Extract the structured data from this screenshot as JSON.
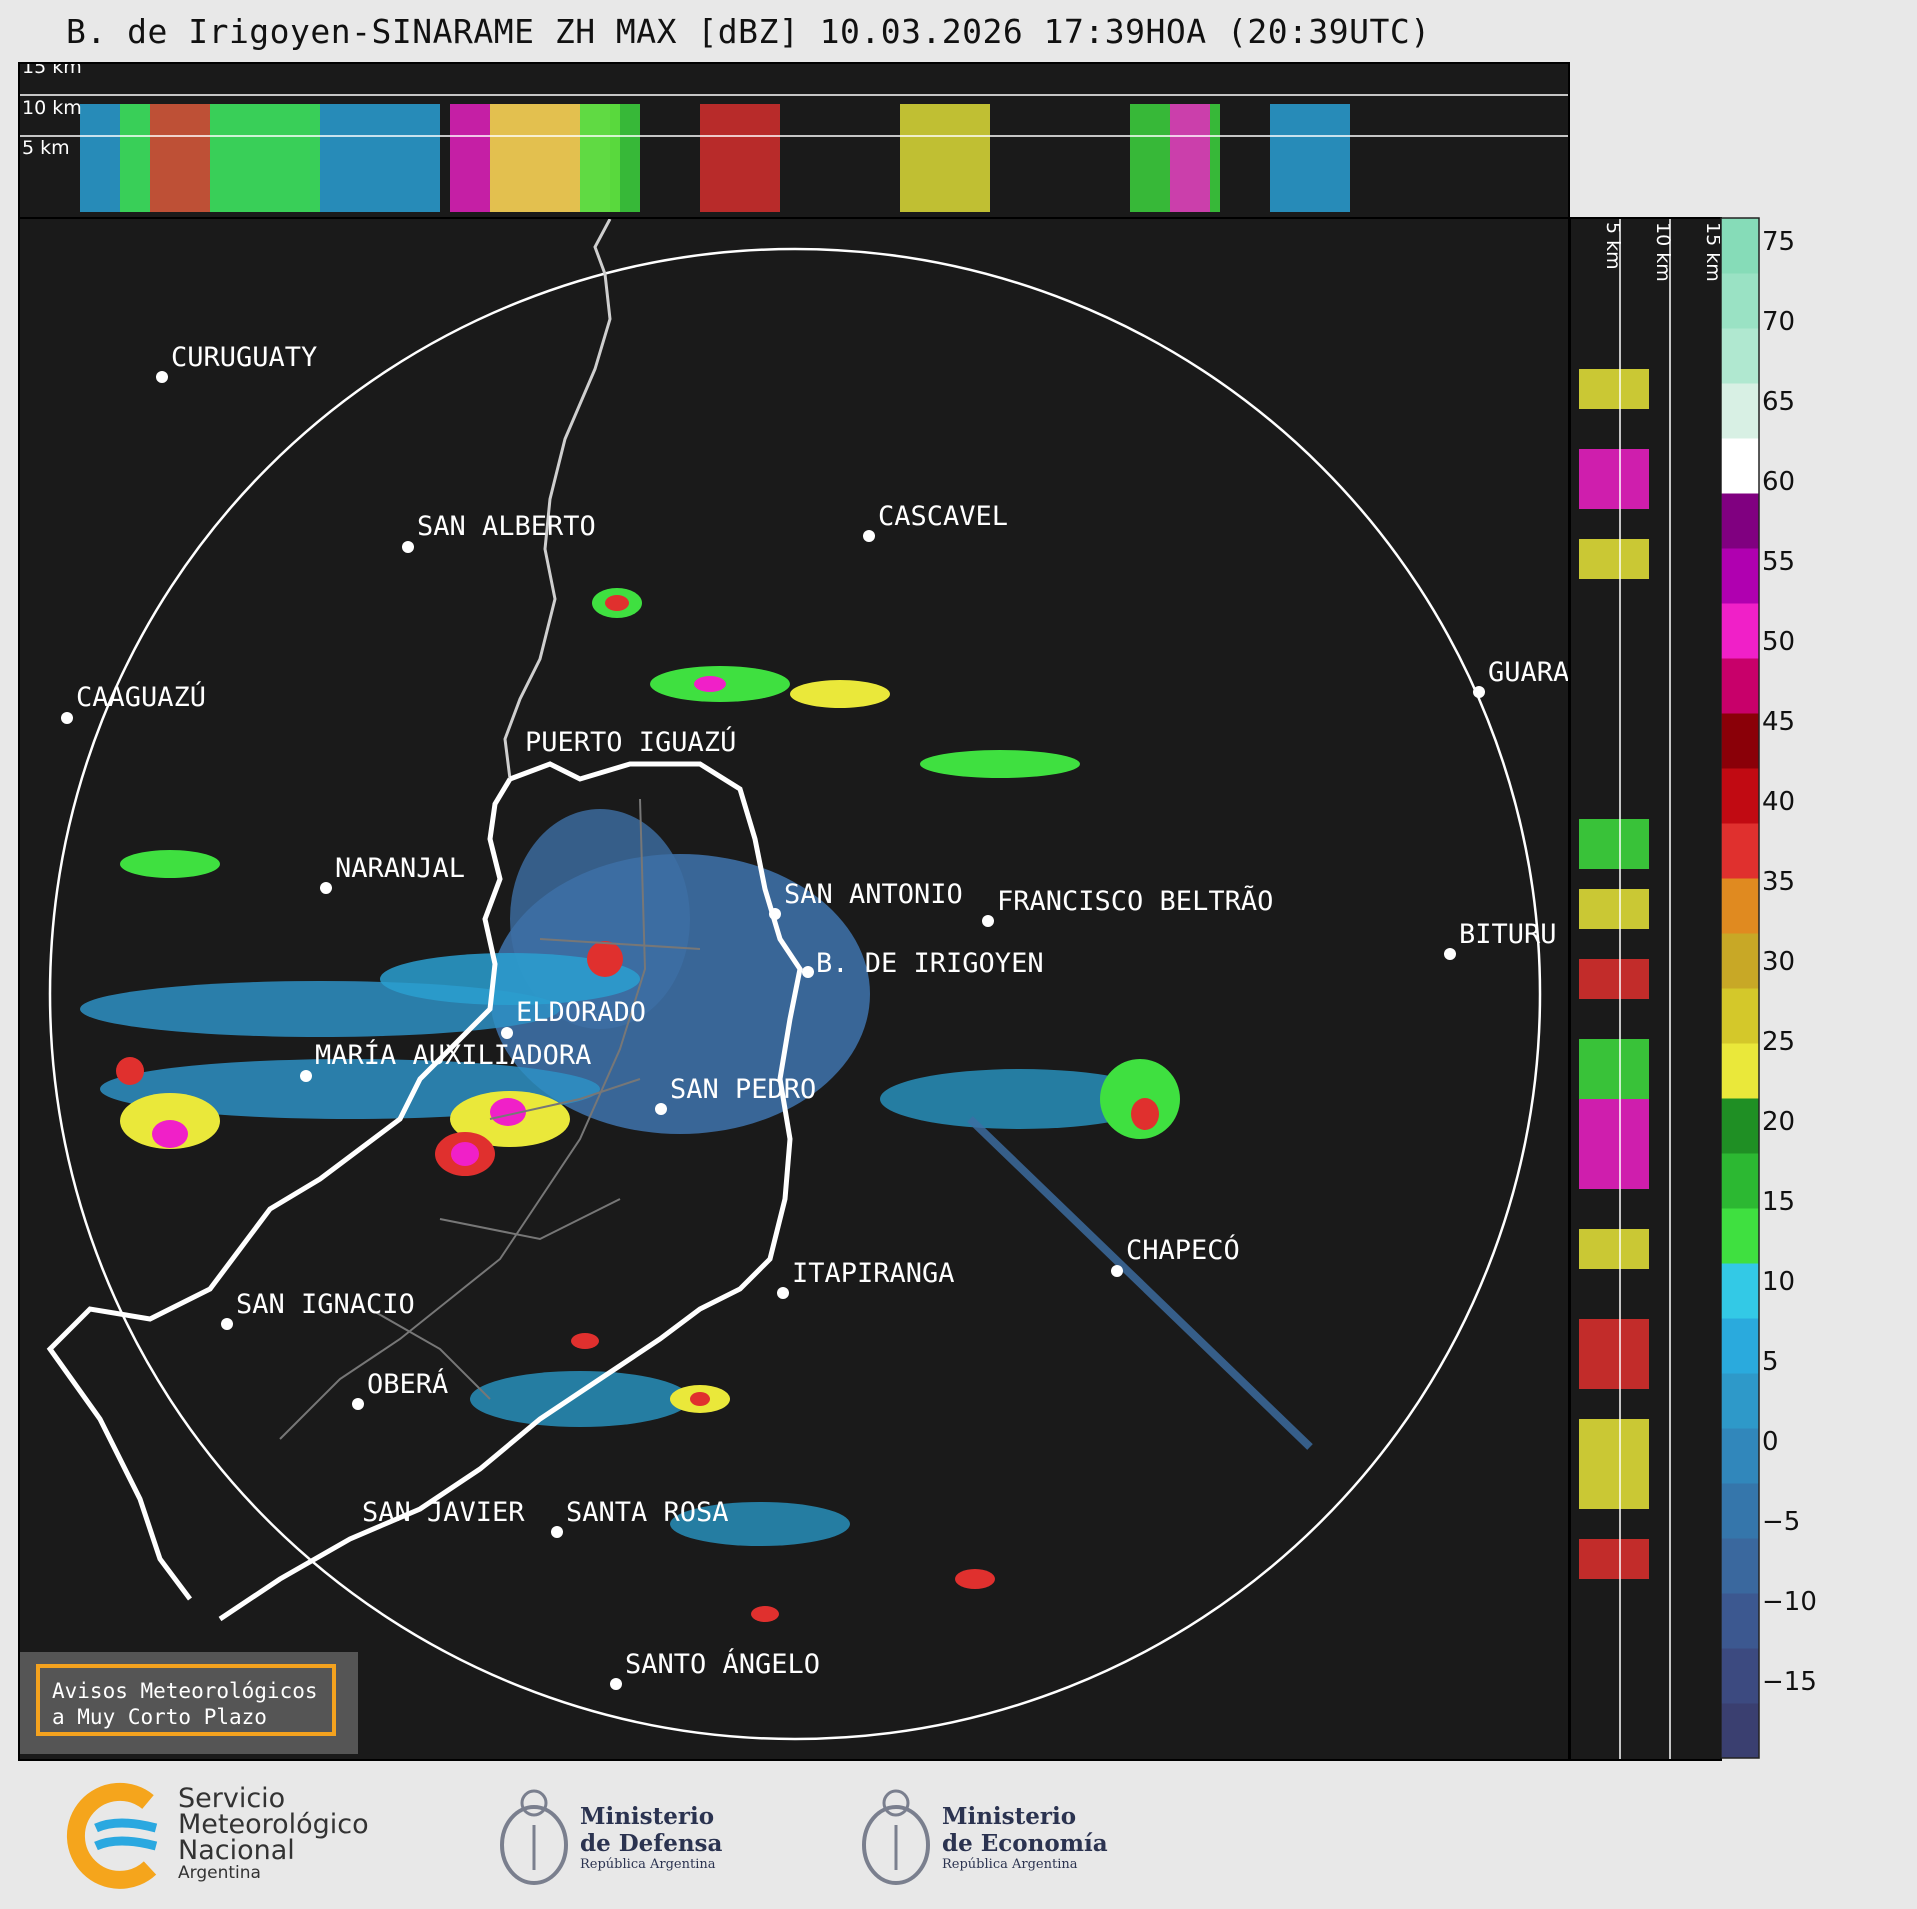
{
  "title": "B. de Irigoyen-SINARAME ZH MAX [dBZ] 10.03.2026 17:39HOA (20:39UTC)",
  "top_panel": {
    "height_labels": [
      "15 km",
      "10 km",
      "5 km"
    ]
  },
  "side_panel": {
    "height_labels": [
      "5 km",
      "10 km",
      "15 km"
    ]
  },
  "colorbar": {
    "ticks": [
      "75",
      "70",
      "65",
      "60",
      "55",
      "50",
      "45",
      "40",
      "35",
      "30",
      "25",
      "20",
      "15",
      "10",
      "5",
      "0",
      "−5",
      "−10",
      "−15"
    ],
    "colors": [
      "#3a3f70",
      "#3c4a80",
      "#3c5890",
      "#3a689e",
      "#3576ab",
      "#3187bb",
      "#2e99c9",
      "#2aaadd",
      "#33c9e6",
      "#3fe040",
      "#2cb832",
      "#1f8f24",
      "#eae83a",
      "#d4c82a",
      "#c8a826",
      "#e08a20",
      "#e0302e",
      "#c10a12",
      "#8a0008",
      "#c8006a",
      "#f020c8",
      "#b000b0",
      "#800080",
      "#ffffff",
      "#d8f0e4",
      "#b0e8d0",
      "#9ae2c4",
      "#86dcb8"
    ]
  },
  "places": [
    {
      "name": "CURUGUATY"
    },
    {
      "name": "SAN ALBERTO"
    },
    {
      "name": "CASCAVEL"
    },
    {
      "name": "CAAGUAZÚ"
    },
    {
      "name": "GUARA"
    },
    {
      "name": "PUERTO IGUAZÚ"
    },
    {
      "name": "NARANJAL"
    },
    {
      "name": "SAN ANTONIO"
    },
    {
      "name": "FRANCISCO BELTRÃO"
    },
    {
      "name": "BITURU"
    },
    {
      "name": "B. DE IRIGOYEN"
    },
    {
      "name": "ELDORADO"
    },
    {
      "name": "MARÍA AUXILIADORA"
    },
    {
      "name": "SAN PEDRO"
    },
    {
      "name": "CHAPECÓ"
    },
    {
      "name": "ITAPIRANGA"
    },
    {
      "name": "SAN IGNACIO"
    },
    {
      "name": "OBERÁ"
    },
    {
      "name": "SAN JAVIER"
    },
    {
      "name": "SANTA ROSA"
    },
    {
      "name": "SANTO ÁNGELO"
    }
  ],
  "announcement": {
    "line1": "Avisos Meteorológicos",
    "line2": "a Muy Corto Plazo"
  },
  "logos": {
    "smn": {
      "line1": "Servicio",
      "line2": "Meteorológico",
      "line3": "Nacional",
      "line4": "Argentina"
    },
    "defensa": {
      "line1": "Ministerio",
      "line2": "de Defensa",
      "line3": "República Argentina"
    },
    "economia": {
      "line1": "Ministerio",
      "line2": "de Economía",
      "line3": "República Argentina"
    }
  }
}
